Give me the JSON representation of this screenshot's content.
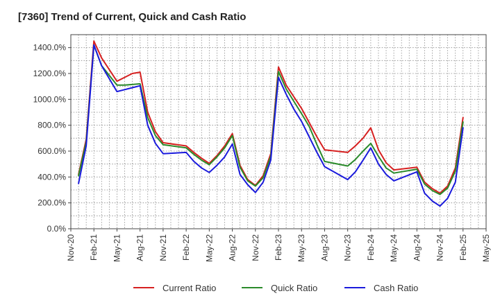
{
  "chart_data": {
    "type": "line",
    "title": "[7360]  Trend of Current, Quick and Cash Ratio",
    "xlabel": "",
    "ylabel": "",
    "ylim": [
      0,
      1500
    ],
    "y_ticks": [
      0,
      200,
      400,
      600,
      800,
      1000,
      1200,
      1400
    ],
    "y_tick_labels": [
      "0.0%",
      "200.0%",
      "400.0%",
      "600.0%",
      "800.0%",
      "1000.0%",
      "1200.0%",
      "1400.0%"
    ],
    "x_tick_labels": [
      "Nov-20",
      "Feb-21",
      "May-21",
      "Aug-21",
      "Nov-21",
      "Feb-22",
      "May-22",
      "Aug-22",
      "Nov-22",
      "Feb-23",
      "May-23",
      "Aug-23",
      "Nov-23",
      "Feb-24",
      "May-24",
      "Aug-24",
      "Nov-24",
      "Feb-25",
      "May-25"
    ],
    "x": [
      "Dec-20",
      "Jan-21",
      "Feb-21",
      "Mar-21",
      "May-21",
      "Jun-21",
      "Jul-21",
      "Aug-21",
      "Sep-21",
      "Oct-21",
      "Nov-21",
      "Feb-22",
      "Mar-22",
      "Apr-22",
      "May-22",
      "Jun-22",
      "Jul-22",
      "Aug-22",
      "Sep-22",
      "Oct-22",
      "Nov-22",
      "Dec-22",
      "Jan-23",
      "Feb-23",
      "Mar-23",
      "Apr-23",
      "May-23",
      "Jun-23",
      "Jul-23",
      "Aug-23",
      "Nov-23",
      "Dec-23",
      "Jan-24",
      "Feb-24",
      "Mar-24",
      "Apr-24",
      "May-24",
      "Aug-24",
      "Sep-24",
      "Oct-24",
      "Nov-24",
      "Dec-24",
      "Jan-25",
      "Feb-25"
    ],
    "x_month_index": [
      1,
      2,
      3,
      4,
      6,
      7,
      8,
      9,
      10,
      11,
      12,
      15,
      16,
      17,
      18,
      19,
      20,
      21,
      22,
      23,
      24,
      25,
      26,
      27,
      28,
      29,
      30,
      31,
      32,
      33,
      36,
      37,
      38,
      39,
      40,
      41,
      42,
      45,
      46,
      47,
      48,
      49,
      50,
      51
    ],
    "series": [
      {
        "name": "Current Ratio",
        "color": "#d62020",
        "values": [
          420,
          690,
          1450,
          1320,
          1140,
          1170,
          1200,
          1210,
          900,
          750,
          665,
          640,
          590,
          545,
          505,
          565,
          640,
          735,
          490,
          380,
          335,
          410,
          580,
          1250,
          1110,
          1020,
          930,
          820,
          710,
          610,
          590,
          640,
          700,
          780,
          610,
          510,
          455,
          475,
          360,
          310,
          275,
          330,
          470,
          860
        ]
      },
      {
        "name": "Quick Ratio",
        "color": "#2a8a2a",
        "values": [
          410,
          670,
          1420,
          1260,
          1110,
          1110,
          1115,
          1120,
          860,
          720,
          650,
          625,
          575,
          530,
          495,
          555,
          625,
          720,
          475,
          370,
          330,
          395,
          560,
          1215,
          1080,
          985,
          890,
          790,
          650,
          520,
          485,
          535,
          600,
          660,
          560,
          470,
          430,
          460,
          345,
          295,
          265,
          315,
          445,
          825
        ]
      },
      {
        "name": "Cash Ratio",
        "color": "#1a1adc",
        "values": [
          350,
          640,
          1420,
          1260,
          1060,
          1075,
          1090,
          1105,
          800,
          660,
          580,
          590,
          520,
          470,
          435,
          490,
          555,
          655,
          420,
          340,
          280,
          360,
          530,
          1170,
          1040,
          925,
          830,
          710,
          590,
          480,
          380,
          440,
          530,
          625,
          500,
          420,
          370,
          440,
          275,
          215,
          175,
          235,
          360,
          780
        ]
      }
    ],
    "legend_position": "bottom-center"
  }
}
